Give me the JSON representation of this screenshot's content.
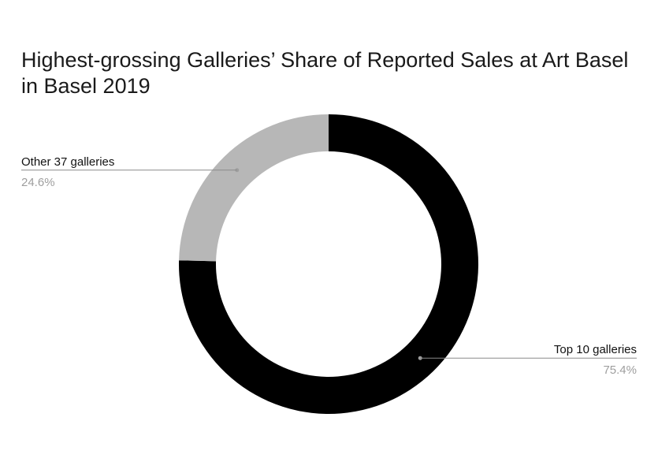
{
  "chart_data": {
    "type": "pie",
    "subtype": "donut",
    "title": "Highest-grossing Galleries’ Share of Reported Sales at Art Basel in Basel 2019",
    "slices": [
      {
        "label": "Top 10 galleries",
        "value": 75.4,
        "display": "75.4%",
        "color": "#000000"
      },
      {
        "label": "Other 37 galleries",
        "value": 24.6,
        "display": "24.6%",
        "color": "#b7b7b7"
      }
    ],
    "start": "12 o'clock",
    "direction": "clockwise",
    "legend": "none",
    "label_style": "leader lines with percentage"
  }
}
